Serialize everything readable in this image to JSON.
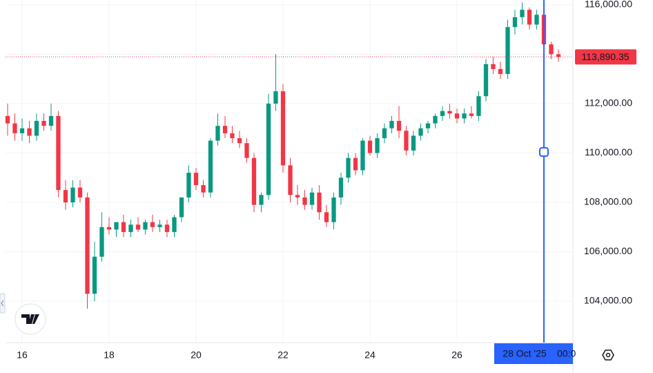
{
  "chart_data": {
    "type": "candlestick",
    "x": [
      15.667,
      15.833,
      16,
      16.167,
      16.333,
      16.5,
      16.667,
      16.833,
      17,
      17.167,
      17.333,
      17.5,
      17.667,
      17.833,
      18,
      18.167,
      18.333,
      18.5,
      18.667,
      18.833,
      19,
      19.167,
      19.333,
      19.5,
      19.667,
      19.833,
      20,
      20.167,
      20.333,
      20.5,
      20.667,
      20.833,
      21,
      21.167,
      21.333,
      21.5,
      21.667,
      21.833,
      22,
      22.167,
      22.333,
      22.5,
      22.667,
      22.833,
      23,
      23.167,
      23.333,
      23.5,
      23.667,
      23.833,
      24,
      24.167,
      24.333,
      24.5,
      24.667,
      24.833,
      25,
      25.167,
      25.333,
      25.5,
      25.667,
      25.833,
      26,
      26.167,
      26.333,
      26.5,
      26.667,
      26.833,
      27,
      27.167,
      27.333,
      27.5,
      27.667,
      27.833,
      28,
      28.167,
      28.333
    ],
    "open": [
      111500,
      111200,
      110800,
      111000,
      110700,
      111300,
      111100,
      111500,
      108500,
      108000,
      108600,
      108200,
      104300,
      105800,
      107000,
      106900,
      107200,
      106800,
      107100,
      106900,
      107200,
      107000,
      107100,
      106800,
      107400,
      108200,
      109200,
      108700,
      108400,
      110500,
      111100,
      110800,
      110600,
      110400,
      109800,
      107900,
      108300,
      112000,
      112500,
      109500,
      108300,
      108200,
      107900,
      108400,
      107600,
      107200,
      108200,
      109000,
      109800,
      109300,
      110500,
      110000,
      110600,
      111000,
      111300,
      110900,
      110100,
      110700,
      111000,
      111200,
      111500,
      111700,
      111600,
      111400,
      111600,
      111500,
      112300,
      113600,
      113400,
      113200,
      115100,
      115500,
      115800,
      115200,
      115600,
      114400,
      114000
    ],
    "high": [
      112000,
      111600,
      111400,
      111300,
      111600,
      111600,
      112000,
      111700,
      108900,
      108900,
      108900,
      108400,
      106400,
      107600,
      107400,
      107200,
      107500,
      107300,
      107400,
      107300,
      107500,
      107300,
      107300,
      107500,
      108200,
      109500,
      109400,
      108900,
      110600,
      111600,
      111500,
      111100,
      110900,
      110600,
      110000,
      108400,
      112400,
      114000,
      112800,
      109800,
      108700,
      108500,
      108600,
      108700,
      107900,
      108400,
      109200,
      110000,
      110000,
      110600,
      110700,
      110800,
      111200,
      111500,
      111900,
      111100,
      110900,
      111200,
      111300,
      111600,
      111900,
      112000,
      111800,
      111800,
      111900,
      112500,
      113800,
      113900,
      113700,
      115400,
      115800,
      116100,
      115900,
      115800,
      115700,
      114500,
      114200
    ],
    "low": [
      110700,
      110500,
      110500,
      110400,
      110500,
      110900,
      110900,
      108200,
      107700,
      107800,
      108000,
      103700,
      104000,
      105600,
      106700,
      106600,
      106600,
      106600,
      106800,
      106700,
      106800,
      106800,
      106600,
      106600,
      107200,
      108000,
      108500,
      108200,
      108200,
      110300,
      110600,
      110400,
      110200,
      109600,
      107600,
      107600,
      108100,
      111700,
      109200,
      108000,
      107900,
      107700,
      107700,
      107300,
      107000,
      106900,
      107900,
      108800,
      109100,
      109100,
      109900,
      109800,
      110400,
      110800,
      110600,
      109900,
      109900,
      110500,
      110800,
      111000,
      111300,
      111400,
      111200,
      111200,
      111400,
      111300,
      112100,
      113200,
      113000,
      113000,
      114800,
      115200,
      115000,
      115000,
      114200,
      113800,
      113700
    ],
    "close": [
      111200,
      110800,
      111000,
      110700,
      111300,
      111100,
      111500,
      108500,
      108000,
      108600,
      108200,
      104300,
      105800,
      107000,
      106900,
      107200,
      106800,
      107100,
      106900,
      107200,
      107000,
      107100,
      106800,
      107400,
      108200,
      109200,
      108700,
      108400,
      110500,
      111100,
      110800,
      110600,
      110400,
      109800,
      107900,
      108300,
      112000,
      112500,
      109500,
      108300,
      108200,
      107900,
      108400,
      107600,
      107200,
      108200,
      109000,
      109800,
      109300,
      110500,
      110000,
      110600,
      111000,
      111300,
      110900,
      110100,
      110700,
      111000,
      111200,
      111500,
      111700,
      111600,
      111400,
      111600,
      111500,
      112300,
      113600,
      113400,
      113200,
      115100,
      115500,
      115800,
      115200,
      115600,
      114400,
      114000,
      113890.35
    ],
    "up_color": "#089981",
    "down_color": "#f23645",
    "xlim": [
      15.619,
      28.667
    ],
    "xticks": [
      16,
      18,
      20,
      22,
      24,
      26
    ],
    "ylim": [
      102322,
      116196
    ],
    "yticks": [
      {
        "value": 104000,
        "label": "104,000.00"
      },
      {
        "value": 106000,
        "label": "106,000.00"
      },
      {
        "value": 108000,
        "label": "108,000.00"
      },
      {
        "value": 110000,
        "label": "110,000.00"
      },
      {
        "value": 112000,
        "label": "112,000.00"
      },
      {
        "value": 114000,
        "label": null
      },
      {
        "value": 116000,
        "label": "116,000.00"
      }
    ],
    "grid": true,
    "last_price": {
      "value": 113890.35,
      "label": "113,890.35"
    },
    "crosshair_x": 28,
    "crosshair_date": "28 Oct '25",
    "crosshair_time": "00:0"
  }
}
